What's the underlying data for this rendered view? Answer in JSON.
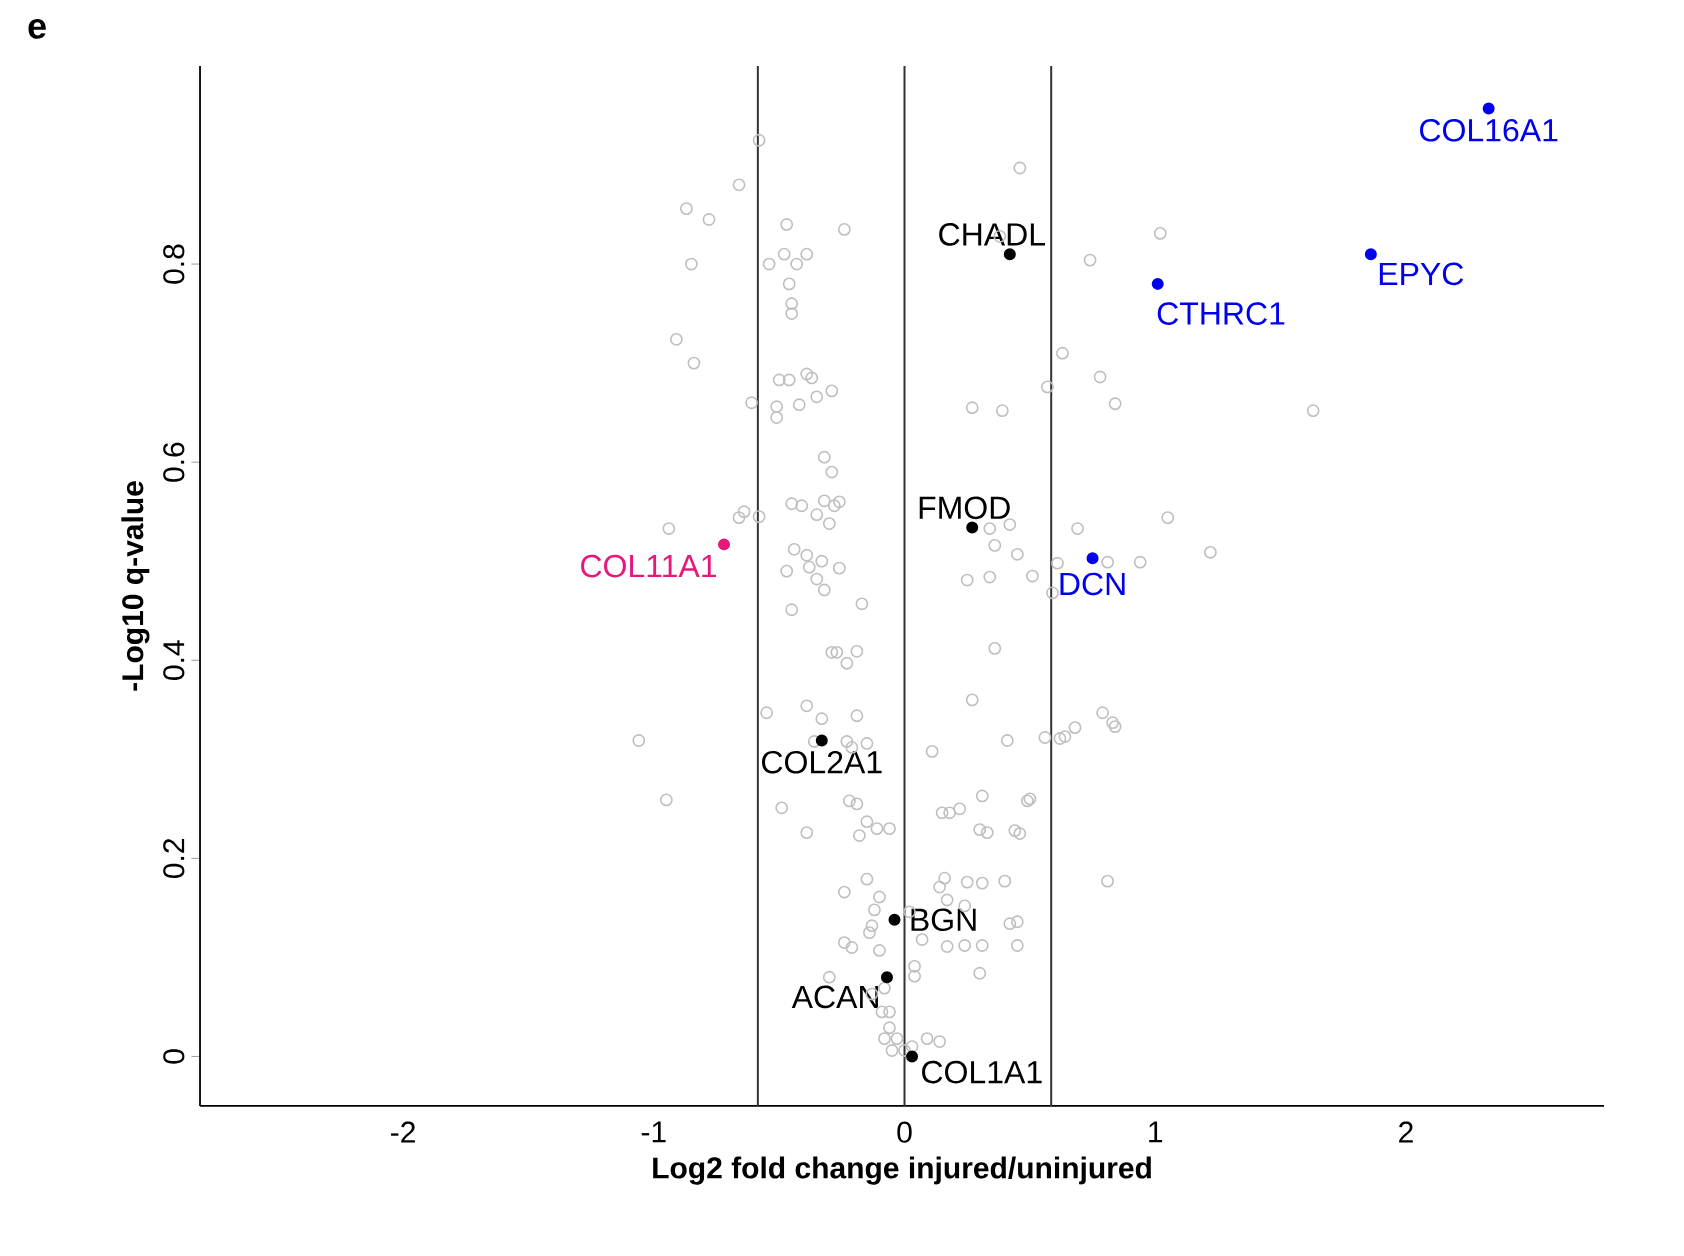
{
  "chart_data": {
    "type": "scatter",
    "title": "e",
    "xlabel": "Log2 fold change injured/uninjured",
    "ylabel": "-Log10 q-value",
    "xlim": [
      -2.81,
      2.79
    ],
    "ylim": [
      -0.05,
      1.0
    ],
    "xticks": [
      -2,
      -1,
      0,
      1,
      2
    ],
    "yticks": [
      0,
      0.2,
      0.4,
      0.6,
      0.8
    ],
    "marker": "circle",
    "ref_lines": [
      {
        "axis": "x",
        "value": -0.585,
        "color": "#333333"
      },
      {
        "axis": "x",
        "value": 0,
        "color": "#333333"
      },
      {
        "axis": "x",
        "value": 0.585,
        "color": "#333333"
      }
    ],
    "series": [
      {
        "color": "#bfbfbf",
        "x": [
          -0.58,
          -0.66,
          -0.87,
          -0.78,
          -0.85,
          -0.47,
          -0.24,
          -0.48,
          -0.54,
          -0.43,
          -0.39,
          -0.46,
          -0.45,
          -0.45,
          -0.91,
          -0.84,
          -0.5,
          -0.46,
          -0.39,
          -0.37,
          -0.29,
          -0.42,
          -0.35,
          -0.51,
          -0.61,
          -0.51,
          -0.32,
          -0.29,
          -0.32,
          -0.26,
          -0.28,
          -0.45,
          -0.41,
          -0.35,
          -0.3,
          -0.94,
          -0.64,
          -0.66,
          -0.58,
          -0.44,
          -0.39,
          -0.33,
          -0.47,
          -0.38,
          -0.26,
          -0.35,
          -0.32,
          -0.45,
          -0.17,
          -0.29,
          -0.27,
          -0.19,
          -0.23,
          -0.55,
          -0.39,
          -0.33,
          -0.19,
          -1.06,
          -0.36,
          -0.23,
          -0.15,
          -0.21,
          -0.95,
          -0.49,
          -0.39,
          -0.18,
          -0.19,
          -0.22,
          -0.15,
          -0.11,
          -0.06,
          0.11,
          0.27,
          0.41,
          0.31,
          0.18,
          0.15,
          0.22,
          0.3,
          0.33,
          0.44,
          0.46,
          0.49,
          0.5,
          -0.24,
          -0.15,
          -0.1,
          -0.12,
          -0.13,
          -0.14,
          0.16,
          0.25,
          0.31,
          0.4,
          0.14,
          0.17,
          0.24,
          0.02,
          0.07,
          0.17,
          0.24,
          0.31,
          0.45,
          0.42,
          -0.24,
          -0.21,
          -0.1,
          -0.3,
          -0.13,
          -0.08,
          0.04,
          0.3,
          0.04,
          -0.06,
          -0.09,
          -0.06,
          -0.08,
          -0.03,
          -0.05,
          0.0,
          0.03,
          0.09,
          0.14,
          0.46,
          0.38,
          0.74,
          1.02,
          0.63,
          0.78,
          0.84,
          0.57,
          0.27,
          0.39,
          1.63,
          0.69,
          1.05,
          1.22,
          0.94,
          0.81,
          0.42,
          0.34,
          0.36,
          0.34,
          0.45,
          0.51,
          0.25,
          0.61,
          0.59,
          0.36,
          0.68,
          0.64,
          0.79,
          0.83,
          0.84,
          0.62,
          0.56,
          0.81,
          0.45
        ],
        "values": [
          0.925,
          0.88,
          0.856,
          0.845,
          0.8,
          0.84,
          0.835,
          0.81,
          0.8,
          0.8,
          0.81,
          0.78,
          0.76,
          0.75,
          0.724,
          0.7,
          0.683,
          0.683,
          0.689,
          0.685,
          0.672,
          0.658,
          0.666,
          0.656,
          0.66,
          0.645,
          0.605,
          0.59,
          0.561,
          0.56,
          0.556,
          0.558,
          0.556,
          0.547,
          0.538,
          0.533,
          0.55,
          0.544,
          0.545,
          0.512,
          0.506,
          0.5,
          0.49,
          0.494,
          0.493,
          0.482,
          0.471,
          0.451,
          0.457,
          0.408,
          0.408,
          0.409,
          0.397,
          0.347,
          0.354,
          0.341,
          0.344,
          0.319,
          0.318,
          0.318,
          0.316,
          0.312,
          0.259,
          0.251,
          0.226,
          0.223,
          0.255,
          0.258,
          0.237,
          0.23,
          0.23,
          0.308,
          0.36,
          0.319,
          0.263,
          0.246,
          0.246,
          0.25,
          0.229,
          0.226,
          0.228,
          0.225,
          0.258,
          0.26,
          0.166,
          0.179,
          0.161,
          0.148,
          0.132,
          0.125,
          0.18,
          0.176,
          0.175,
          0.177,
          0.171,
          0.158,
          0.152,
          0.146,
          0.118,
          0.111,
          0.112,
          0.112,
          0.112,
          0.134,
          0.115,
          0.11,
          0.107,
          0.08,
          0.063,
          0.069,
          0.081,
          0.084,
          0.091,
          0.045,
          0.045,
          0.029,
          0.018,
          0.018,
          0.006,
          0.006,
          0.01,
          0.018,
          0.015,
          0.897,
          0.828,
          0.804,
          0.831,
          0.71,
          0.686,
          0.659,
          0.676,
          0.655,
          0.652,
          0.652,
          0.533,
          0.544,
          0.509,
          0.499,
          0.499,
          0.537,
          0.533,
          0.516,
          0.484,
          0.507,
          0.485,
          0.481,
          0.498,
          0.468,
          0.412,
          0.332,
          0.323,
          0.347,
          0.337,
          0.333,
          0.321,
          0.322,
          0.177,
          0.136
        ]
      },
      {
        "name": "COL16A1",
        "color": "#0000ee",
        "x": [
          2.33
        ],
        "values": [
          0.957
        ]
      },
      {
        "name": "EPYC",
        "color": "#0000ee",
        "x": [
          1.86
        ],
        "values": [
          0.81
        ]
      },
      {
        "name": "CTHRC1",
        "color": "#0000ee",
        "x": [
          1.01
        ],
        "values": [
          0.78
        ]
      },
      {
        "name": "DCN",
        "color": "#0000ee",
        "x": [
          0.75
        ],
        "values": [
          0.503
        ]
      },
      {
        "name": "CHADL",
        "color": "#000000",
        "x": [
          0.42
        ],
        "values": [
          0.81
        ]
      },
      {
        "name": "FMOD",
        "color": "#000000",
        "x": [
          0.27
        ],
        "values": [
          0.534
        ]
      },
      {
        "name": "COL11A1",
        "color": "#e6197a",
        "x": [
          -0.72
        ],
        "values": [
          0.517
        ]
      },
      {
        "name": "COL2A1",
        "color": "#000000",
        "x": [
          -0.33
        ],
        "values": [
          0.319
        ]
      },
      {
        "name": "BGN",
        "color": "#000000",
        "x": [
          -0.04
        ],
        "values": [
          0.138
        ]
      },
      {
        "name": "ACAN",
        "color": "#000000",
        "x": [
          -0.07
        ],
        "values": [
          0.08
        ]
      },
      {
        "name": "COL1A1",
        "color": "#000000",
        "x": [
          0.03
        ],
        "values": [
          0.0
        ]
      }
    ]
  }
}
